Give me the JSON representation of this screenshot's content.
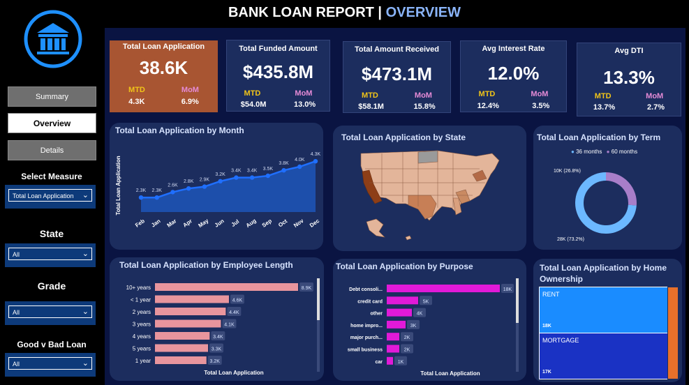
{
  "header": {
    "title_main": "BANK LOAN REPORT |",
    "title_accent": "OVERVIEW"
  },
  "nav": {
    "summary": "Summary",
    "overview": "Overview",
    "details": "Details"
  },
  "filters": {
    "measure_label": "Select Measure",
    "measure_value": "Total Loan Application",
    "state_label": "State",
    "state_value": "All",
    "grade_label": "Grade",
    "grade_value": "All",
    "goodbad_label": "Good v Bad Loan",
    "goodbad_value": "All"
  },
  "kpis": [
    {
      "label": "Total Loan Application",
      "value": "38.6K",
      "mtd_label": "MTD",
      "mtd": "4.3K",
      "mom_label": "MoM",
      "mom": "6.9%"
    },
    {
      "label": "Total Funded Amount",
      "value": "$435.8M",
      "mtd_label": "MTD",
      "mtd": "$54.0M",
      "mom_label": "MoM",
      "mom": "13.0%"
    },
    {
      "label": "Total Amount Received",
      "value": "$473.1M",
      "mtd_label": "MTD",
      "mtd": "$58.1M",
      "mom_label": "MoM",
      "mom": "15.8%"
    },
    {
      "label": "Avg Interest Rate",
      "value": "12.0%",
      "mtd_label": "MTD",
      "mtd": "12.4%",
      "mom_label": "MoM",
      "mom": "3.5%"
    },
    {
      "label": "Avg DTI",
      "value": "13.3%",
      "mtd_label": "MTD",
      "mtd": "13.7%",
      "mom_label": "MoM",
      "mom": "2.7%"
    }
  ],
  "colors": {
    "accent_blue": "#8ab4f8",
    "kpi_orange": "#a85532",
    "line": "#1f6fff",
    "bar_pink": "#e8959d",
    "bar_magenta": "#e11ad8",
    "donut_36": "#6cb8ff",
    "donut_60": "#a87ec9"
  },
  "month_chart": {
    "title": "Total Loan Application by Month",
    "ylabel": "Total Loan Application",
    "chart_data": {
      "type": "area",
      "categories": [
        "Feb",
        "Jan",
        "Mar",
        "Apr",
        "May",
        "Jun",
        "Jul",
        "Aug",
        "Sep",
        "Oct",
        "Nov",
        "Dec"
      ],
      "values": [
        2.3,
        2.3,
        2.6,
        2.8,
        2.9,
        3.2,
        3.4,
        3.4,
        3.5,
        3.8,
        4.0,
        4.3
      ],
      "labels": [
        "2.3K",
        "2.3K",
        "2.6K",
        "2.8K",
        "2.9K",
        "3.2K",
        "3.4K",
        "3.4K",
        "3.5K",
        "3.8K",
        "4.0K",
        "4.3K"
      ]
    }
  },
  "state_map": {
    "title": "Total Loan Application by State"
  },
  "term_chart": {
    "title": "Total Loan Application by Term",
    "chart_data": {
      "type": "pie",
      "series": [
        {
          "name": "36 months",
          "value": 28,
          "label": "28K (73.2%)"
        },
        {
          "name": "60 months",
          "value": 10,
          "label": "10K (26.8%)"
        }
      ]
    }
  },
  "emp_chart": {
    "title": "Total Loan Application by Employee Length",
    "xlabel": "Total Loan Application",
    "chart_data": {
      "type": "bar",
      "categories": [
        "10+ years",
        "< 1 year",
        "2 years",
        "3 years",
        "4 years",
        "5 years",
        "1 year"
      ],
      "values": [
        8.9,
        4.6,
        4.4,
        4.1,
        3.4,
        3.3,
        3.2
      ],
      "labels": [
        "8.9K",
        "4.6K",
        "4.4K",
        "4.1K",
        "3.4K",
        "3.3K",
        "3.2K"
      ]
    }
  },
  "purpose_chart": {
    "title": "Total Loan Application by Purpose",
    "xlabel": "Total Loan Application",
    "chart_data": {
      "type": "bar",
      "categories": [
        "Debt consoli...",
        "credit card",
        "other",
        "home impro...",
        "major purch...",
        "small business",
        "car"
      ],
      "values": [
        18,
        5,
        4,
        3,
        2,
        2,
        1
      ],
      "labels": [
        "18K",
        "5K",
        "4K",
        "3K",
        "2K",
        "2K",
        "1K"
      ]
    }
  },
  "home_chart": {
    "title": "Total Loan Application by Home Ownership",
    "chart_data": {
      "type": "treemap",
      "series": [
        {
          "name": "RENT",
          "value": 18,
          "label": "18K"
        },
        {
          "name": "MORTGAGE",
          "value": 17,
          "label": "17K"
        }
      ]
    }
  }
}
